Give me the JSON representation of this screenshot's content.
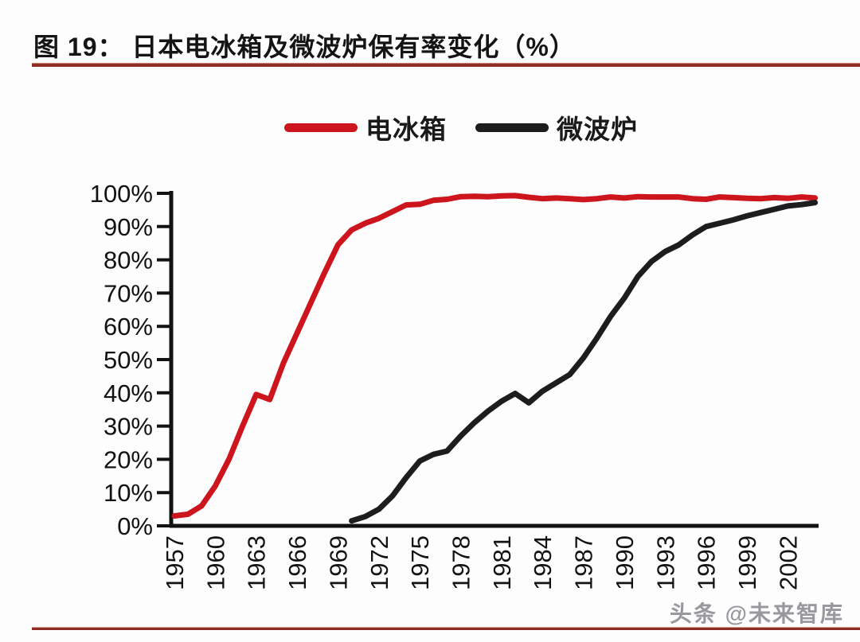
{
  "page": {
    "title": "图 19： 日本电冰箱及微波炉保有率变化（%）",
    "watermark": "头条 @未来智库",
    "background": "#fdfdfe",
    "rule_color": "#8e2d26",
    "text_color": "#141414"
  },
  "legend": {
    "items": [
      {
        "id": "refrigerator",
        "label": "电冰箱",
        "color": "#cd151e"
      },
      {
        "id": "microwave",
        "label": "微波炉",
        "color": "#1d1d1f"
      }
    ]
  },
  "chart_data": {
    "type": "line",
    "title": "日本电冰箱及微波炉保有率变化（%）",
    "xlabel": "",
    "ylabel": "",
    "xlim": [
      1956.5,
      2004.8
    ],
    "ylim": [
      0,
      100
    ],
    "grid": false,
    "legend_position": "top-center",
    "axis_color": "#121212",
    "y_ticks": [
      0,
      10,
      20,
      30,
      40,
      50,
      60,
      70,
      80,
      90,
      100
    ],
    "y_tick_labels": [
      "0%",
      "10%",
      "20%",
      "30%",
      "40%",
      "50%",
      "60%",
      "70%",
      "80%",
      "90%",
      "100%"
    ],
    "x_ticks": [
      1957,
      1960,
      1963,
      1966,
      1969,
      1972,
      1975,
      1978,
      1981,
      1984,
      1987,
      1990,
      1993,
      1996,
      1999,
      2002
    ],
    "x_tick_labels": [
      "1957",
      "1960",
      "1963",
      "1966",
      "1969",
      "1972",
      "1975",
      "1978",
      "1981",
      "1984",
      "1987",
      "1990",
      "1993",
      "1996",
      "1999",
      "2002"
    ],
    "series": [
      {
        "id": "refrigerator",
        "name": "电冰箱",
        "color": "#cd151e",
        "x": [
          1957,
          1958,
          1959,
          1960,
          1961,
          1962,
          1963,
          1964,
          1965,
          1966,
          1967,
          1968,
          1969,
          1970,
          1971,
          1972,
          1973,
          1974,
          1975,
          1976,
          1977,
          1978,
          1979,
          1980,
          1981,
          1982,
          1983,
          1984,
          1985,
          1986,
          1987,
          1988,
          1989,
          1990,
          1991,
          1992,
          1993,
          1994,
          1995,
          1996,
          1997,
          1998,
          1999,
          2000,
          2001,
          2002,
          2003,
          2004
        ],
        "values": [
          3,
          3.5,
          6,
          12,
          20,
          30,
          39.5,
          38,
          49,
          58,
          67,
          76,
          84.5,
          89,
          91,
          92.5,
          94.5,
          96.5,
          96.7,
          97.9,
          98.2,
          99,
          99.1,
          99,
          99.2,
          99.3,
          98.8,
          98.4,
          98.6,
          98.4,
          98.1,
          98.4,
          98.9,
          98.6,
          99,
          98.9,
          98.9,
          98.9,
          98.4,
          98.2,
          98.9,
          98.7,
          98.5,
          98.4,
          98.7,
          98.5,
          98.9,
          98.6
        ]
      },
      {
        "id": "microwave",
        "name": "微波炉",
        "color": "#1d1d1f",
        "x": [
          1970,
          1971,
          1972,
          1973,
          1974,
          1975,
          1976,
          1977,
          1978,
          1979,
          1980,
          1981,
          1982,
          1983,
          1984,
          1985,
          1986,
          1987,
          1988,
          1989,
          1990,
          1991,
          1992,
          1993,
          1994,
          1995,
          1996,
          1997,
          1998,
          1999,
          2000,
          2001,
          2002,
          2003,
          2004
        ],
        "values": [
          1.5,
          2.8,
          5,
          9,
          14.5,
          19.5,
          21.5,
          22.5,
          27,
          31,
          34.5,
          37.5,
          39.8,
          37,
          40.5,
          43,
          45.5,
          50.5,
          56.5,
          63,
          68.5,
          75,
          79.5,
          82.5,
          84.5,
          87.5,
          90,
          91,
          92,
          93.2,
          94.2,
          95.2,
          96.2,
          96.6,
          97.2
        ]
      }
    ]
  }
}
